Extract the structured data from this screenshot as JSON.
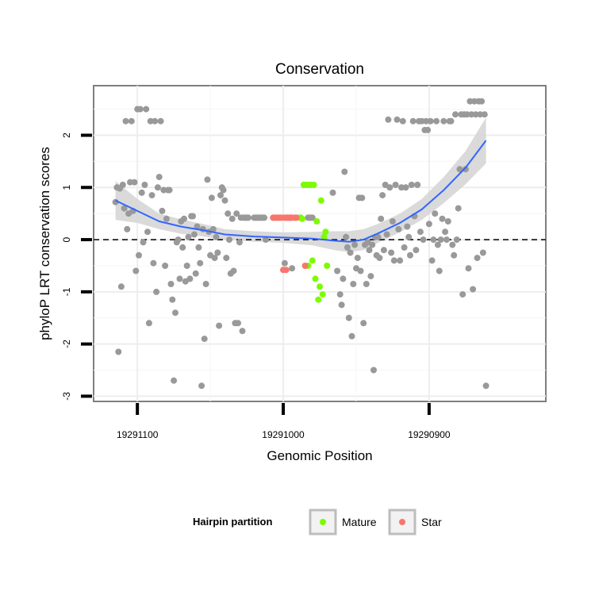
{
  "chart_data": {
    "type": "scatter",
    "title": "Conservation",
    "xlabel": "Genomic Position",
    "ylabel": "phyloP LRT conservation scores",
    "x_reversed": true,
    "xlim": [
      19291130,
      19290820
    ],
    "ylim": [
      -3.1,
      2.95
    ],
    "x_ticks": [
      19291100,
      19291000,
      19290900
    ],
    "x_tick_labels": [
      "19291100",
      "19291000",
      "19290900"
    ],
    "y_ticks": [
      -3,
      -2,
      -1,
      0,
      1,
      2
    ],
    "y_tick_labels": [
      "-3",
      "-2",
      "-1",
      "0",
      "1",
      "2"
    ],
    "grid": true,
    "reference_line": {
      "y": 0,
      "style": "dashed"
    },
    "legend": {
      "title": "Hairpin partition",
      "position": "bottom",
      "entries": [
        {
          "label": "Mature",
          "color": "#7CFC00"
        },
        {
          "label": "Star",
          "color": "#F8766D"
        }
      ]
    },
    "colors": {
      "other": "#999999",
      "mature": "#7CFC00",
      "star": "#F8766D",
      "smooth": "#3366FF",
      "band": "#D3D3D3"
    },
    "series": [
      {
        "name": "Other",
        "points": [
          [
            19291115,
            0.72
          ],
          [
            19291114,
            1.0
          ],
          [
            19291113,
            -2.15
          ],
          [
            19291112,
            0.98
          ],
          [
            19291111,
            -0.9
          ],
          [
            19291110,
            1.05
          ],
          [
            19291109,
            0.6
          ],
          [
            19291108,
            2.27
          ],
          [
            19291107,
            0.2
          ],
          [
            19291106,
            0.5
          ],
          [
            19291105,
            1.1
          ],
          [
            19291104,
            2.27
          ],
          [
            19291103,
            0.55
          ],
          [
            19291102,
            1.1
          ],
          [
            19291101,
            -0.6
          ],
          [
            19291100,
            2.5
          ],
          [
            19291099,
            -0.3
          ],
          [
            19291098,
            2.5
          ],
          [
            19291097,
            0.9
          ],
          [
            19291096,
            -0.05
          ],
          [
            19291095,
            1.05
          ],
          [
            19291094,
            2.5
          ],
          [
            19291093,
            0.15
          ],
          [
            19291092,
            -1.6
          ],
          [
            19291091,
            2.27
          ],
          [
            19291090,
            0.85
          ],
          [
            19291089,
            -0.45
          ],
          [
            19291088,
            2.27
          ],
          [
            19291087,
            -1.0
          ],
          [
            19291086,
            1.0
          ],
          [
            19291085,
            1.2
          ],
          [
            19291084,
            2.27
          ],
          [
            19291083,
            0.55
          ],
          [
            19291082,
            0.95
          ],
          [
            19291081,
            -0.5
          ],
          [
            19291080,
            0.4
          ],
          [
            19291079,
            0.95
          ],
          [
            19291078,
            0.95
          ],
          [
            19291077,
            -0.85
          ],
          [
            19291076,
            -1.15
          ],
          [
            19291075,
            -2.7
          ],
          [
            19291074,
            -1.4
          ],
          [
            19291073,
            -0.05
          ],
          [
            19291072,
            0.0
          ],
          [
            19291071,
            -0.75
          ],
          [
            19291070,
            0.35
          ],
          [
            19291069,
            -0.15
          ],
          [
            19291068,
            0.4
          ],
          [
            19291067,
            -0.8
          ],
          [
            19291066,
            -0.5
          ],
          [
            19291065,
            0.05
          ],
          [
            19291064,
            -0.75
          ],
          [
            19291063,
            0.45
          ],
          [
            19291062,
            0.45
          ],
          [
            19291061,
            0.1
          ],
          [
            19291060,
            -0.65
          ],
          [
            19291059,
            0.25
          ],
          [
            19291058,
            -0.15
          ],
          [
            19291057,
            -0.45
          ],
          [
            19291056,
            -2.8
          ],
          [
            19291055,
            0.2
          ],
          [
            19291054,
            -1.9
          ],
          [
            19291053,
            -0.85
          ],
          [
            19291052,
            1.15
          ],
          [
            19291051,
            0.15
          ],
          [
            19291050,
            -0.3
          ],
          [
            19291049,
            0.8
          ],
          [
            19291048,
            0.2
          ],
          [
            19291047,
            -0.35
          ],
          [
            19291046,
            0.05
          ],
          [
            19291045,
            -0.25
          ],
          [
            19291044,
            -1.65
          ],
          [
            19291043,
            0.85
          ],
          [
            19291042,
            1.0
          ],
          [
            19291041,
            0.95
          ],
          [
            19291040,
            0.75
          ],
          [
            19291039,
            -0.35
          ],
          [
            19291038,
            0.5
          ],
          [
            19291037,
            0.0
          ],
          [
            19291036,
            -0.65
          ],
          [
            19291035,
            0.4
          ],
          [
            19291034,
            -0.6
          ],
          [
            19291033,
            -1.6
          ],
          [
            19291032,
            0.5
          ],
          [
            19291031,
            -1.6
          ],
          [
            19291030,
            -0.05
          ],
          [
            19291029,
            0.42
          ],
          [
            19291028,
            -1.75
          ],
          [
            19291027,
            0.42
          ],
          [
            19291026,
            0.42
          ],
          [
            19291025,
            0.42
          ],
          [
            19291024,
            0.42
          ],
          [
            19291020,
            0.42
          ],
          [
            19291019,
            0.42
          ],
          [
            19291018,
            0.42
          ],
          [
            19291017,
            0.42
          ],
          [
            19291016,
            0.42
          ],
          [
            19291015,
            0.42
          ],
          [
            19291014,
            0.42
          ],
          [
            19291013,
            0.42
          ],
          [
            19291012,
            0.0
          ],
          [
            19290999,
            -0.45
          ],
          [
            19290998,
            0.42
          ],
          [
            19290997,
            0.42
          ],
          [
            19290996,
            0.42
          ],
          [
            19290995,
            0.42
          ],
          [
            19290994,
            -0.55
          ],
          [
            19290988,
            0.42
          ],
          [
            19290983,
            0.42
          ],
          [
            19290982,
            0.42
          ],
          [
            19290981,
            0.42
          ],
          [
            19290980,
            0.42
          ],
          [
            19290966,
            0.9
          ],
          [
            19290963,
            -0.6
          ],
          [
            19290961,
            -1.05
          ],
          [
            19290960,
            -1.25
          ],
          [
            19290959,
            -0.75
          ],
          [
            19290958,
            1.3
          ],
          [
            19290957,
            0.05
          ],
          [
            19290956,
            -0.15
          ],
          [
            19290955,
            -1.5
          ],
          [
            19290954,
            -0.25
          ],
          [
            19290953,
            -1.85
          ],
          [
            19290952,
            -0.85
          ],
          [
            19290951,
            -0.1
          ],
          [
            19290950,
            -0.55
          ],
          [
            19290949,
            -0.35
          ],
          [
            19290948,
            0.8
          ],
          [
            19290947,
            -0.6
          ],
          [
            19290946,
            0.8
          ],
          [
            19290945,
            -1.6
          ],
          [
            19290944,
            -0.1
          ],
          [
            19290943,
            -0.85
          ],
          [
            19290942,
            -0.05
          ],
          [
            19290941,
            -0.2
          ],
          [
            19290940,
            -0.7
          ],
          [
            19290939,
            -0.1
          ],
          [
            19290938,
            -2.5
          ],
          [
            19290937,
            0.05
          ],
          [
            19290936,
            -0.3
          ],
          [
            19290935,
            0.05
          ],
          [
            19290934,
            -0.35
          ],
          [
            19290933,
            0.4
          ],
          [
            19290932,
            0.85
          ],
          [
            19290931,
            -0.2
          ],
          [
            19290930,
            1.05
          ],
          [
            19290929,
            0.1
          ],
          [
            19290928,
            2.3
          ],
          [
            19290927,
            1.0
          ],
          [
            19290926,
            -0.25
          ],
          [
            19290925,
            0.35
          ],
          [
            19290924,
            -0.4
          ],
          [
            19290923,
            1.05
          ],
          [
            19290922,
            2.3
          ],
          [
            19290921,
            0.2
          ],
          [
            19290920,
            -0.4
          ],
          [
            19290919,
            1.0
          ],
          [
            19290918,
            2.27
          ],
          [
            19290917,
            -0.15
          ],
          [
            19290916,
            1.0
          ],
          [
            19290915,
            0.25
          ],
          [
            19290914,
            0.05
          ],
          [
            19290913,
            -0.3
          ],
          [
            19290912,
            1.05
          ],
          [
            19290911,
            2.27
          ],
          [
            19290910,
            0.45
          ],
          [
            19290909,
            -0.2
          ],
          [
            19290908,
            1.05
          ],
          [
            19290907,
            2.27
          ],
          [
            19290906,
            0.15
          ],
          [
            19290905,
            2.27
          ],
          [
            19290904,
            0.0
          ],
          [
            19290903,
            2.1
          ],
          [
            19290902,
            2.27
          ],
          [
            19290901,
            2.1
          ],
          [
            19290900,
            0.3
          ],
          [
            19290899,
            2.27
          ],
          [
            19290898,
            -0.4
          ],
          [
            19290897,
            0.0
          ],
          [
            19290896,
            0.5
          ],
          [
            19290895,
            2.27
          ],
          [
            19290894,
            -0.1
          ],
          [
            19290893,
            -0.6
          ],
          [
            19290892,
            0.0
          ],
          [
            19290891,
            0.4
          ],
          [
            19290890,
            2.27
          ],
          [
            19290889,
            0.15
          ],
          [
            19290888,
            0.0
          ],
          [
            19290887,
            0.35
          ],
          [
            19290886,
            2.27
          ],
          [
            19290885,
            2.27
          ],
          [
            19290884,
            -0.1
          ],
          [
            19290883,
            -0.3
          ],
          [
            19290882,
            2.4
          ],
          [
            19290881,
            0.0
          ],
          [
            19290880,
            0.6
          ],
          [
            19290879,
            1.35
          ],
          [
            19290878,
            2.4
          ],
          [
            19290877,
            -1.05
          ],
          [
            19290876,
            2.4
          ],
          [
            19290875,
            1.35
          ],
          [
            19290874,
            2.4
          ],
          [
            19290873,
            -0.55
          ],
          [
            19290872,
            2.65
          ],
          [
            19290871,
            2.4
          ],
          [
            19290870,
            -0.95
          ],
          [
            19290869,
            2.65
          ],
          [
            19290868,
            2.4
          ],
          [
            19290867,
            -0.35
          ],
          [
            19290866,
            2.65
          ],
          [
            19290865,
            2.4
          ],
          [
            19290864,
            2.65
          ],
          [
            19290863,
            -0.25
          ],
          [
            19290862,
            2.4
          ],
          [
            19290861,
            -2.8
          ]
        ]
      },
      {
        "name": "Mature",
        "points": [
          [
            19290989,
            0.42
          ],
          [
            19290988,
            0.42
          ],
          [
            19290987,
            0.4
          ],
          [
            19290986,
            1.05
          ],
          [
            19290985,
            1.05
          ],
          [
            19290984,
            1.05
          ],
          [
            19290983,
            -0.5
          ],
          [
            19290982,
            1.05
          ],
          [
            19290981,
            1.05
          ],
          [
            19290980,
            -0.4
          ],
          [
            19290979,
            1.05
          ],
          [
            19290978,
            -0.75
          ],
          [
            19290977,
            0.35
          ],
          [
            19290976,
            -1.15
          ],
          [
            19290975,
            -0.9
          ],
          [
            19290974,
            0.75
          ],
          [
            19290973,
            -1.05
          ],
          [
            19290972,
            0.05
          ],
          [
            19290971,
            0.15
          ],
          [
            19290970,
            -0.5
          ]
        ]
      },
      {
        "name": "Star",
        "points": [
          [
            19291007,
            0.42
          ],
          [
            19291006,
            0.42
          ],
          [
            19291005,
            0.42
          ],
          [
            19291004,
            0.42
          ],
          [
            19291003,
            0.42
          ],
          [
            19291002,
            0.42
          ],
          [
            19291001,
            0.42
          ],
          [
            19291000,
            -0.58
          ],
          [
            19290999,
            0.42
          ],
          [
            19290998,
            -0.58
          ],
          [
            19290997,
            0.42
          ],
          [
            19290996,
            0.42
          ],
          [
            19290995,
            0.42
          ],
          [
            19290994,
            0.42
          ],
          [
            19290992,
            0.42
          ],
          [
            19290991,
            0.42
          ],
          [
            19290985,
            -0.5
          ]
        ]
      }
    ],
    "smooth_fit": {
      "method": "loess",
      "x": [
        19291115,
        19291100,
        19291085,
        19291070,
        19291055,
        19291040,
        19291020,
        19291000,
        19290980,
        19290965,
        19290955,
        19290945,
        19290935,
        19290920,
        19290905,
        19290890,
        19290875,
        19290861
      ],
      "y": [
        0.75,
        0.55,
        0.35,
        0.25,
        0.18,
        0.1,
        0.06,
        0.04,
        0.02,
        -0.02,
        -0.04,
        0.0,
        0.12,
        0.32,
        0.58,
        0.95,
        1.38,
        1.9
      ],
      "band_lower": [
        0.38,
        0.32,
        0.2,
        0.11,
        0.06,
        0.0,
        -0.04,
        -0.06,
        -0.11,
        -0.2,
        -0.24,
        -0.2,
        -0.06,
        0.14,
        0.38,
        0.7,
        1.06,
        1.46
      ],
      "band_upper": [
        1.12,
        0.78,
        0.5,
        0.39,
        0.3,
        0.2,
        0.16,
        0.14,
        0.15,
        0.16,
        0.16,
        0.2,
        0.3,
        0.5,
        0.78,
        1.2,
        1.7,
        2.34
      ]
    }
  }
}
